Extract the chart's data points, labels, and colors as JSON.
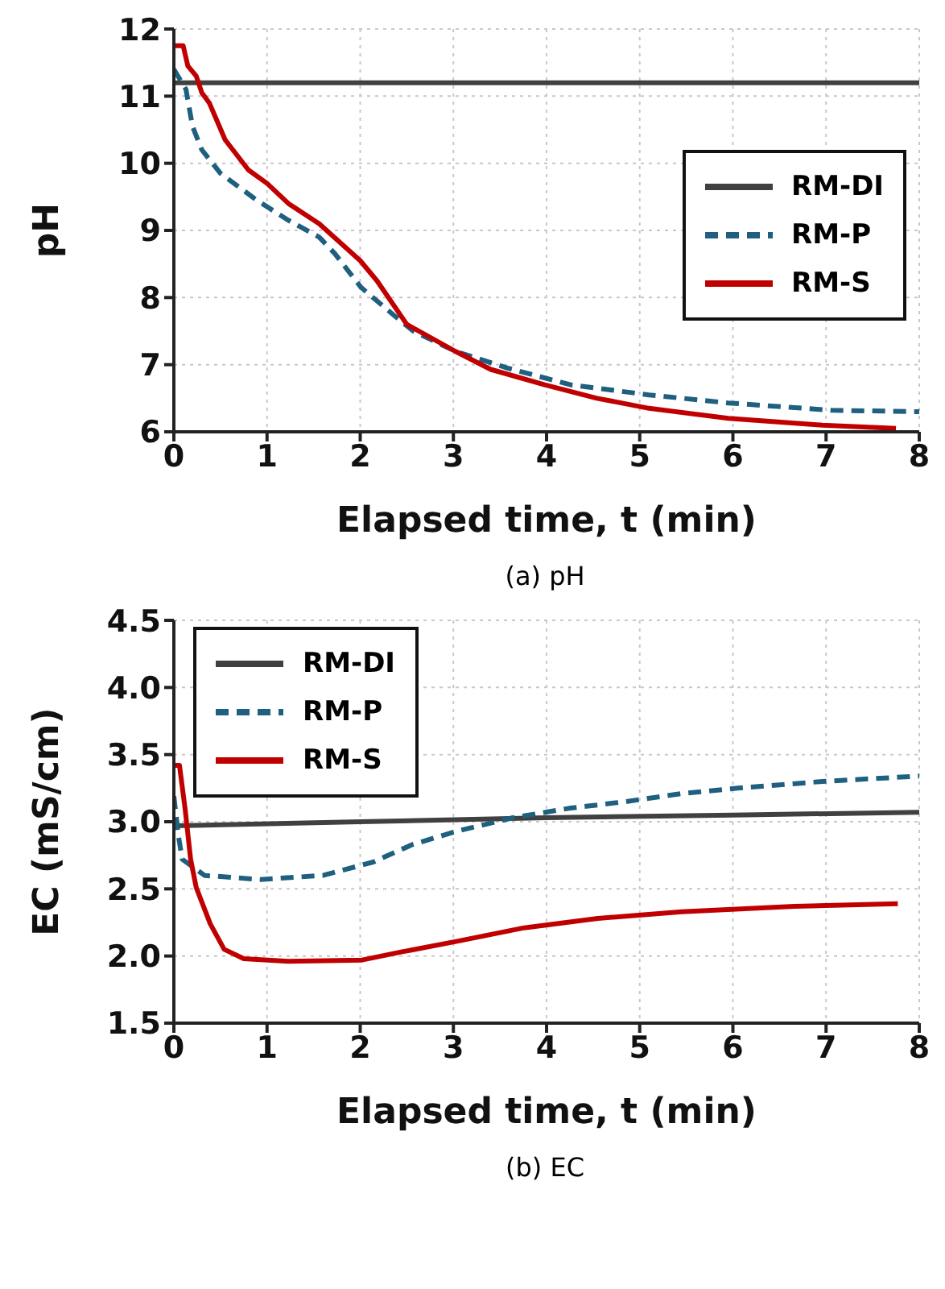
{
  "chart_data": [
    {
      "type": "line",
      "title": "(a) pH",
      "xlabel": "Elapsed time, t (min)",
      "ylabel": "pH",
      "xlim": [
        0,
        8
      ],
      "xticks": [
        0,
        1,
        2,
        3,
        4,
        5,
        6,
        7,
        8
      ],
      "ylim": [
        6,
        12
      ],
      "yticks": [
        6,
        7,
        8,
        9,
        10,
        11,
        12
      ],
      "grid": true,
      "legend": "right",
      "marker": "none",
      "series": [
        {
          "name": "RM-DI",
          "color": "#404040",
          "line_style": "solid",
          "x": [
            0,
            2,
            4,
            6,
            8
          ],
          "values": [
            11.2,
            11.2,
            11.2,
            11.2,
            11.2
          ]
        },
        {
          "name": "RM-P",
          "color": "#1f5f7f",
          "line_style": "dashed",
          "x": [
            0,
            0.13,
            0.2,
            0.3,
            0.5,
            0.89,
            1.23,
            1.56,
            1.73,
            2.01,
            2.35,
            2.57,
            3.02,
            3.58,
            4.26,
            5.1,
            5.95,
            7.07,
            8
          ],
          "values": [
            11.4,
            11.1,
            10.55,
            10.2,
            9.85,
            9.45,
            9.15,
            8.9,
            8.65,
            8.15,
            7.75,
            7.5,
            7.2,
            6.95,
            6.7,
            6.55,
            6.43,
            6.32,
            6.3
          ]
        },
        {
          "name": "RM-S",
          "color": "#c00000",
          "line_style": "solid",
          "x": [
            0,
            0.1,
            0.15,
            0.24,
            0.3,
            0.38,
            0.55,
            0.8,
            1.0,
            1.23,
            1.56,
            2.0,
            2.18,
            2.5,
            3.02,
            3.4,
            3.98,
            4.54,
            5.1,
            5.95,
            6.96,
            7.75
          ],
          "values": [
            11.75,
            11.75,
            11.45,
            11.3,
            11.05,
            10.9,
            10.35,
            9.9,
            9.7,
            9.4,
            9.1,
            8.55,
            8.25,
            7.6,
            7.2,
            6.93,
            6.7,
            6.5,
            6.35,
            6.2,
            6.1,
            6.05
          ]
        }
      ]
    },
    {
      "type": "line",
      "title": "(b) EC",
      "xlabel": "Elapsed time, t (min)",
      "ylabel": "EC (mS/cm)",
      "xlim": [
        0,
        8
      ],
      "xticks": [
        0,
        1,
        2,
        3,
        4,
        5,
        6,
        7,
        8
      ],
      "ylim": [
        1.5,
        4.5
      ],
      "yticks": [
        1.5,
        {
          "value": 2,
          "label": "2.0"
        },
        2.5,
        {
          "value": 3,
          "label": "3.0"
        },
        3.5,
        {
          "value": 4,
          "label": "4.0"
        },
        4.5
      ],
      "grid": true,
      "legend": "top left",
      "marker": "none",
      "series": [
        {
          "name": "RM-DI",
          "color": "#404040",
          "line_style": "solid",
          "x": [
            0,
            2,
            4,
            6,
            8
          ],
          "values": [
            2.97,
            3.0,
            3.03,
            3.05,
            3.07
          ]
        },
        {
          "name": "RM-P",
          "color": "#1f5f7f",
          "line_style": "dashed",
          "x": [
            0,
            0.05,
            0.09,
            0.33,
            0.93,
            1.6,
            2.14,
            2.56,
            3.04,
            3.64,
            4.24,
            4.85,
            5.45,
            6.05,
            6.96,
            8
          ],
          "values": [
            3.19,
            2.89,
            2.72,
            2.6,
            2.57,
            2.6,
            2.7,
            2.83,
            2.93,
            3.03,
            3.1,
            3.15,
            3.21,
            3.25,
            3.3,
            3.34
          ]
        },
        {
          "name": "RM-S",
          "color": "#c00000",
          "line_style": "solid",
          "x": [
            0,
            0.06,
            0.12,
            0.18,
            0.24,
            0.39,
            0.54,
            0.75,
            1.23,
            2.02,
            2.44,
            3.04,
            3.76,
            4.55,
            5.45,
            6.66,
            7.77
          ],
          "values": [
            3.42,
            3.42,
            3.1,
            2.72,
            2.51,
            2.24,
            2.05,
            1.98,
            1.96,
            1.97,
            2.03,
            2.11,
            2.21,
            2.28,
            2.33,
            2.37,
            2.39
          ]
        }
      ]
    }
  ]
}
